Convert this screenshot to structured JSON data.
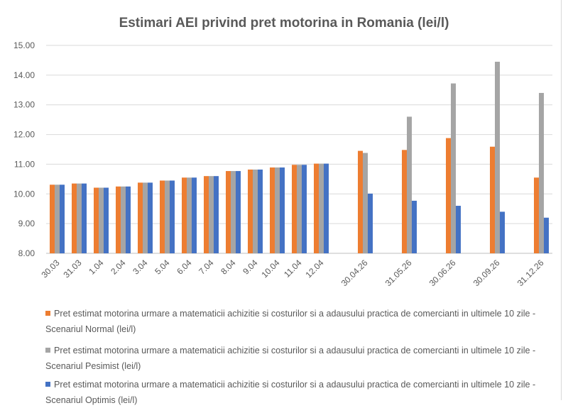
{
  "chart_data": {
    "type": "bar",
    "title": "Estimari AEI privind pret motorina in Romania (lei/l)",
    "xlabel": "",
    "ylabel": "",
    "ylim": [
      8,
      15
    ],
    "yticks": [
      "8.00",
      "9.00",
      "10.00",
      "11.00",
      "12.00",
      "13.00",
      "14.00",
      "15.00"
    ],
    "grid": true,
    "legend_position": "bottom",
    "categories": [
      "30.03",
      "31.03",
      "1.04",
      "2.04",
      "3.04",
      "5.04",
      "6.04",
      "7.04",
      "8.04",
      "9.04",
      "10.04",
      "11.04",
      "12.04",
      "30.04.26",
      "31.05.26",
      "30.06.26",
      "30.09.26",
      "31.12.26"
    ],
    "series": [
      {
        "name": "Pret estimat motorina urmare a matematicii achizitie si costurilor si a adausului practica de comercianti in ultimele 10 zile - Scenariul Normal (lei/l)",
        "color": "#ED7D31",
        "values": [
          10.31,
          10.35,
          10.21,
          10.25,
          10.38,
          10.45,
          10.55,
          10.6,
          10.77,
          10.82,
          10.89,
          10.98,
          11.02,
          11.45,
          11.48,
          11.88,
          11.59,
          10.55
        ]
      },
      {
        "name": "Pret estimat motorina urmare a matematicii achizitie si costurilor si a adausului practica de comercianti in ultimele 10 zile - Scenariul Pesimist (lei/l)",
        "color": "#A5A5A5",
        "values": [
          10.31,
          10.35,
          10.21,
          10.25,
          10.38,
          10.45,
          10.55,
          10.6,
          10.77,
          10.82,
          10.89,
          10.98,
          11.02,
          11.38,
          12.6,
          13.72,
          14.45,
          13.4
        ]
      },
      {
        "name": "Pret estimat motorina urmare a matematicii achizitie si costurilor si a adausului practica de comercianti in ultimele 10 zile - Scenariul Optimis (lei/l)",
        "color": "#4472C4",
        "values": [
          10.31,
          10.35,
          10.21,
          10.25,
          10.38,
          10.45,
          10.55,
          10.6,
          10.77,
          10.82,
          10.89,
          10.98,
          11.02,
          10.01,
          9.77,
          9.6,
          9.4,
          9.2
        ]
      }
    ]
  }
}
